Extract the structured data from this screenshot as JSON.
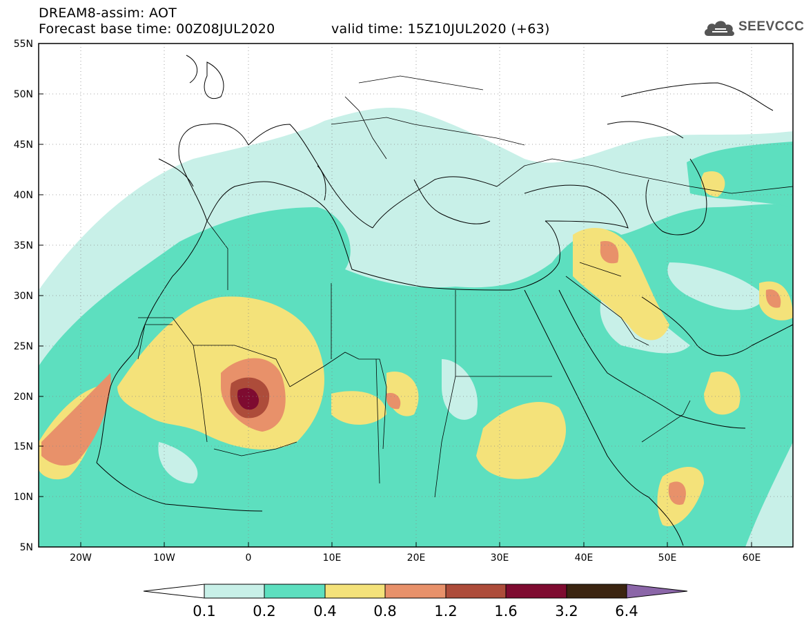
{
  "header": {
    "model_title": "DREAM8-assim: AOT",
    "base_time": "Forecast base time: 00Z08JUL2020",
    "valid_time": "valid time: 15Z10JUL2020 (+63)",
    "logo_text": "SEEVCCC",
    "logo_icon": "cloud-logo-icon"
  },
  "map": {
    "lon_range": [
      -25,
      65
    ],
    "lat_range": [
      5,
      55
    ],
    "lat_labels": [
      "55N",
      "50N",
      "45N",
      "40N",
      "35N",
      "30N",
      "25N",
      "20N",
      "15N",
      "10N",
      "5N"
    ],
    "lon_labels": [
      "20W",
      "10W",
      "0",
      "10E",
      "20E",
      "30E",
      "40E",
      "50E",
      "60E"
    ],
    "grid": "dotted",
    "field": "dust aerosol optical thickness"
  },
  "colorbar": {
    "labels": [
      "0.1",
      "0.2",
      "0.4",
      "0.8",
      "1.2",
      "1.6",
      "3.2",
      "6.4"
    ],
    "colors": [
      "#ffffff",
      "#c8f0e8",
      "#5ddfbf",
      "#f4e27a",
      "#e8916a",
      "#ad4c3a",
      "#7e0b30",
      "#3b2410",
      "#8b66a8"
    ]
  }
}
